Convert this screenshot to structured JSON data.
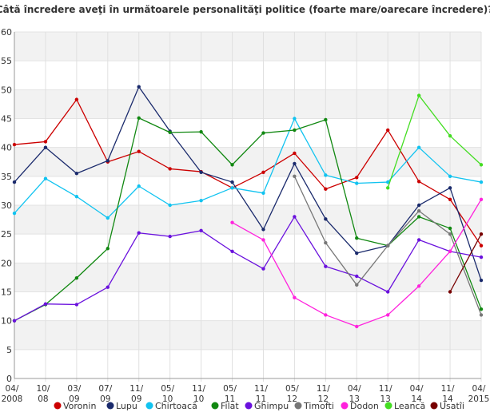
{
  "chart_data": {
    "type": "line",
    "title": "Câtă încredere aveţi în următoarele personalităţi politice (foarte mare/oarecare încredere)?",
    "xlabel": "",
    "ylabel": "",
    "ylim": [
      0,
      60
    ],
    "yticks": [
      0,
      5,
      10,
      15,
      20,
      25,
      30,
      35,
      40,
      45,
      50,
      55,
      60
    ],
    "grid": true,
    "legend_position": "bottom",
    "categories": [
      [
        "04/",
        "2008"
      ],
      [
        "10/",
        "08"
      ],
      [
        "03/",
        "09"
      ],
      [
        "07/",
        "09"
      ],
      [
        "11/",
        "09"
      ],
      [
        "05/",
        "10"
      ],
      [
        "11/",
        "10"
      ],
      [
        "05/",
        "11"
      ],
      [
        "11/",
        "11"
      ],
      [
        "05/",
        "12"
      ],
      [
        "11/",
        "12"
      ],
      [
        "04/",
        "13"
      ],
      [
        "11/",
        "13"
      ],
      [
        "04/",
        "14"
      ],
      [
        "11/",
        "14"
      ],
      [
        "04/",
        "2015"
      ]
    ],
    "series": [
      {
        "name": "Voronin",
        "color": "#cc0000",
        "values": [
          40.5,
          41,
          48.3,
          37.5,
          39.3,
          36.3,
          35.8,
          33,
          35.7,
          39,
          32.8,
          34.8,
          43,
          34.1,
          31,
          23
        ]
      },
      {
        "name": "Lupu",
        "color": "#1a2a6c",
        "values": [
          34,
          40,
          35.5,
          37.7,
          50.5,
          42.8,
          35.7,
          34,
          25.8,
          37.2,
          27.6,
          21.7,
          23,
          30,
          33,
          17
        ]
      },
      {
        "name": "Chirtoacă",
        "color": "#11c3f0",
        "values": [
          28.6,
          34.6,
          31.5,
          27.8,
          33.3,
          30,
          30.8,
          33,
          32.1,
          45,
          35.2,
          33.8,
          34,
          40,
          35,
          34
        ]
      },
      {
        "name": "Filat",
        "color": "#118811",
        "values": [
          10,
          12.8,
          17.4,
          22.5,
          45.1,
          42.6,
          42.7,
          37,
          42.5,
          43,
          44.8,
          24.3,
          23,
          28,
          26,
          12
        ]
      },
      {
        "name": "Ghimpu",
        "color": "#6a11dd",
        "values": [
          10,
          12.9,
          12.8,
          15.8,
          25.2,
          24.6,
          25.6,
          22,
          19,
          28,
          19.4,
          17.7,
          15,
          24,
          22,
          21
        ]
      },
      {
        "name": "Timofti",
        "color": "#777777",
        "values": [
          null,
          null,
          null,
          null,
          null,
          null,
          null,
          null,
          null,
          35,
          23.5,
          16.2,
          23,
          29,
          25,
          11
        ]
      },
      {
        "name": "Dodon",
        "color": "#ff22dd",
        "values": [
          null,
          null,
          null,
          null,
          null,
          null,
          null,
          27,
          24,
          14,
          11,
          9,
          11,
          16,
          22,
          31
        ]
      },
      {
        "name": "Leancă",
        "color": "#44dd22",
        "values": [
          null,
          null,
          null,
          null,
          null,
          null,
          null,
          null,
          null,
          null,
          null,
          null,
          33,
          49,
          42,
          37
        ]
      },
      {
        "name": "Usatîi",
        "color": "#770000",
        "values": [
          null,
          null,
          null,
          null,
          null,
          null,
          null,
          null,
          null,
          null,
          null,
          null,
          null,
          null,
          15,
          25
        ]
      }
    ]
  }
}
